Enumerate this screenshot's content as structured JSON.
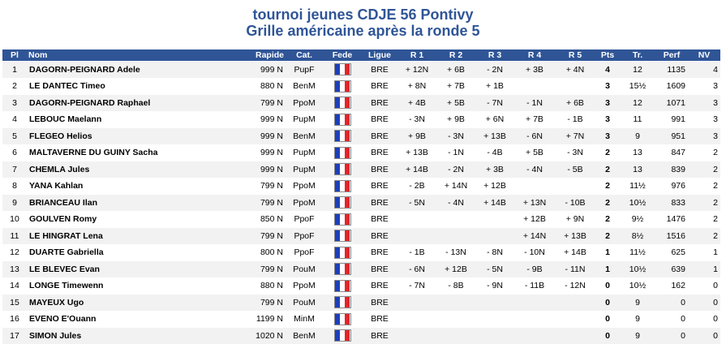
{
  "title": "tournoi jeunes CDJE 56 Pontivy",
  "subtitle": "Grille américaine après la ronde 5",
  "colors": {
    "header_bg": "#2f5597",
    "title": "#2f5597",
    "row_alt": "#f2f2f2"
  },
  "flag_icon": "france-flag-icon",
  "columns": [
    "Pl",
    "Nom",
    "Rapide",
    "Cat.",
    "Fede",
    "Ligue",
    "R 1",
    "R 2",
    "R 3",
    "R 4",
    "R 5",
    "Pts",
    "Tr.",
    "Perf",
    "NV"
  ],
  "rows": [
    {
      "pl": "1",
      "nom": "DAGORN-PEIGNARD Adele",
      "rapide": "999 N",
      "cat": "PupF",
      "ligue": "BRE",
      "r1": "+ 12N",
      "r2": "+ 6B",
      "r3": "- 2N",
      "r4": "+ 3B",
      "r5": "+ 4N",
      "pts": "4",
      "tr": "12",
      "perf": "1135",
      "nv": "4"
    },
    {
      "pl": "2",
      "nom": "LE DANTEC Timeo",
      "rapide": "880 N",
      "cat": "BenM",
      "ligue": "BRE",
      "r1": "+ 8N",
      "r2": "+ 7B",
      "r3": "+ 1B",
      "r4": "",
      "r5": "",
      "pts": "3",
      "tr": "15½",
      "perf": "1609",
      "nv": "3"
    },
    {
      "pl": "3",
      "nom": "DAGORN-PEIGNARD Raphael",
      "rapide": "799 N",
      "cat": "PpoM",
      "ligue": "BRE",
      "r1": "+ 4B",
      "r2": "+ 5B",
      "r3": "- 7N",
      "r4": "- 1N",
      "r5": "+ 6B",
      "pts": "3",
      "tr": "12",
      "perf": "1071",
      "nv": "3"
    },
    {
      "pl": "4",
      "nom": "LEBOUC Maelann",
      "rapide": "999 N",
      "cat": "PupM",
      "ligue": "BRE",
      "r1": "- 3N",
      "r2": "+ 9B",
      "r3": "+ 6N",
      "r4": "+ 7B",
      "r5": "- 1B",
      "pts": "3",
      "tr": "11",
      "perf": "991",
      "nv": "3"
    },
    {
      "pl": "5",
      "nom": "FLEGEO Helios",
      "rapide": "999 N",
      "cat": "BenM",
      "ligue": "BRE",
      "r1": "+ 9B",
      "r2": "- 3N",
      "r3": "+ 13B",
      "r4": "- 6N",
      "r5": "+ 7N",
      "pts": "3",
      "tr": "9",
      "perf": "951",
      "nv": "3"
    },
    {
      "pl": "6",
      "nom": "MALTAVERNE DU GUINY Sacha",
      "rapide": "999 N",
      "cat": "PupM",
      "ligue": "BRE",
      "r1": "+ 13B",
      "r2": "- 1N",
      "r3": "- 4B",
      "r4": "+ 5B",
      "r5": "- 3N",
      "pts": "2",
      "tr": "13",
      "perf": "847",
      "nv": "2"
    },
    {
      "pl": "7",
      "nom": "CHEMLA Jules",
      "rapide": "999 N",
      "cat": "PupM",
      "ligue": "BRE",
      "r1": "+ 14B",
      "r2": "- 2N",
      "r3": "+ 3B",
      "r4": "- 4N",
      "r5": "- 5B",
      "pts": "2",
      "tr": "13",
      "perf": "839",
      "nv": "2"
    },
    {
      "pl": "8",
      "nom": "YANA Kahlan",
      "rapide": "799 N",
      "cat": "PpoM",
      "ligue": "BRE",
      "r1": "- 2B",
      "r2": "+ 14N",
      "r3": "+ 12B",
      "r4": "",
      "r5": "",
      "pts": "2",
      "tr": "11½",
      "perf": "976",
      "nv": "2"
    },
    {
      "pl": "9",
      "nom": "BRIANCEAU Ilan",
      "rapide": "799 N",
      "cat": "PpoM",
      "ligue": "BRE",
      "r1": "- 5N",
      "r2": "- 4N",
      "r3": "+ 14B",
      "r4": "+ 13N",
      "r5": "- 10B",
      "pts": "2",
      "tr": "10½",
      "perf": "833",
      "nv": "2"
    },
    {
      "pl": "10",
      "nom": "GOULVEN Romy",
      "rapide": "850 N",
      "cat": "PpoF",
      "ligue": "BRE",
      "r1": "",
      "r2": "",
      "r3": "",
      "r4": "+ 12B",
      "r5": "+ 9N",
      "pts": "2",
      "tr": "9½",
      "perf": "1476",
      "nv": "2"
    },
    {
      "pl": "11",
      "nom": "LE HINGRAT Lena",
      "rapide": "799 N",
      "cat": "PpoF",
      "ligue": "BRE",
      "r1": "",
      "r2": "",
      "r3": "",
      "r4": "+ 14N",
      "r5": "+ 13B",
      "pts": "2",
      "tr": "8½",
      "perf": "1516",
      "nv": "2"
    },
    {
      "pl": "12",
      "nom": "DUARTE Gabriella",
      "rapide": "800 N",
      "cat": "PpoF",
      "ligue": "BRE",
      "r1": "- 1B",
      "r2": "- 13N",
      "r3": "- 8N",
      "r4": "- 10N",
      "r5": "+ 14B",
      "pts": "1",
      "tr": "11½",
      "perf": "625",
      "nv": "1"
    },
    {
      "pl": "13",
      "nom": "LE BLEVEC Evan",
      "rapide": "799 N",
      "cat": "PouM",
      "ligue": "BRE",
      "r1": "- 6N",
      "r2": "+ 12B",
      "r3": "- 5N",
      "r4": "- 9B",
      "r5": "- 11N",
      "pts": "1",
      "tr": "10½",
      "perf": "639",
      "nv": "1"
    },
    {
      "pl": "14",
      "nom": "LONGE Timewenn",
      "rapide": "880 N",
      "cat": "PpoM",
      "ligue": "BRE",
      "r1": "- 7N",
      "r2": "- 8B",
      "r3": "- 9N",
      "r4": "- 11B",
      "r5": "- 12N",
      "pts": "0",
      "tr": "10½",
      "perf": "162",
      "nv": "0"
    },
    {
      "pl": "15",
      "nom": "MAYEUX Ugo",
      "rapide": "799 N",
      "cat": "PouM",
      "ligue": "BRE",
      "r1": "",
      "r2": "",
      "r3": "",
      "r4": "",
      "r5": "",
      "pts": "0",
      "tr": "9",
      "perf": "0",
      "nv": "0"
    },
    {
      "pl": "16",
      "nom": "EVENO E'Ouann",
      "rapide": "1199 N",
      "cat": "MinM",
      "ligue": "BRE",
      "r1": "",
      "r2": "",
      "r3": "",
      "r4": "",
      "r5": "",
      "pts": "0",
      "tr": "9",
      "perf": "0",
      "nv": "0"
    },
    {
      "pl": "17",
      "nom": "SIMON Jules",
      "rapide": "1020 N",
      "cat": "BenM",
      "ligue": "BRE",
      "r1": "",
      "r2": "",
      "r3": "",
      "r4": "",
      "r5": "",
      "pts": "0",
      "tr": "9",
      "perf": "0",
      "nv": "0"
    }
  ]
}
